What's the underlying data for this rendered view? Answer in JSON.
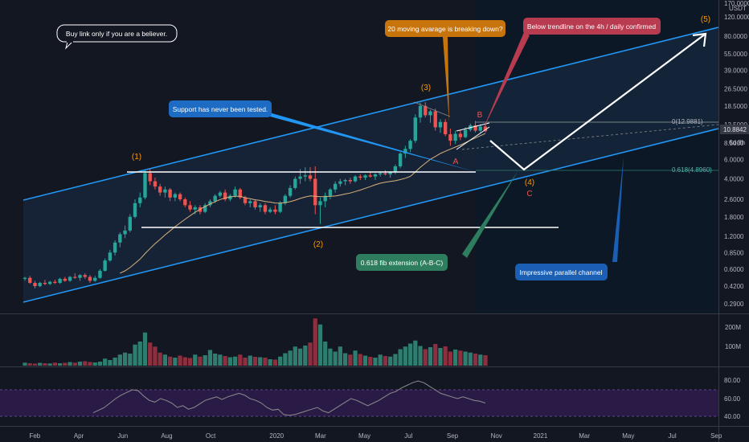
{
  "chart_data": {
    "type": "candlestick",
    "price_scale": "log",
    "currency": "USDT",
    "y_ticks": [
      "170.0000",
      "120.0000",
      "80.0000",
      "55.0000",
      "39.0000",
      "26.5000",
      "18.5000",
      "12.5000",
      "8.5000",
      "6.0000",
      "4.0000",
      "2.6000",
      "1.8000",
      "1.2000",
      "0.8500",
      "0.6000",
      "0.4200",
      "0.2900"
    ],
    "current_price": "10.8842",
    "countdown": "6d 8h",
    "x_ticks": [
      "Feb",
      "Apr",
      "Jun",
      "Aug",
      "Oct",
      "2020",
      "Mar",
      "May",
      "Jul",
      "Sep",
      "Nov",
      "2021",
      "Mar",
      "May",
      "Jul",
      "Sep"
    ],
    "volume_ticks": [
      "200M",
      "100M"
    ],
    "rsi_ticks": [
      "80.00",
      "60.00",
      "40.00"
    ],
    "fib_levels": [
      {
        "label": "0(12.9881)",
        "value": 12.9881
      },
      {
        "label": "0.618(4.8960)",
        "value": 4.896
      }
    ],
    "wave_labels": [
      "(1)",
      "(2)",
      "(3)",
      "(4)",
      "(5)"
    ],
    "abc_labels": [
      "A",
      "B",
      "C"
    ],
    "weekly_candles": [
      [
        0.49,
        0.51,
        0.47,
        0.5
      ],
      [
        0.5,
        0.52,
        0.44,
        0.45
      ],
      [
        0.45,
        0.47,
        0.4,
        0.42
      ],
      [
        0.42,
        0.46,
        0.41,
        0.45
      ],
      [
        0.45,
        0.48,
        0.43,
        0.44
      ],
      [
        0.44,
        0.47,
        0.43,
        0.46
      ],
      [
        0.46,
        0.48,
        0.44,
        0.45
      ],
      [
        0.45,
        0.5,
        0.44,
        0.49
      ],
      [
        0.49,
        0.51,
        0.46,
        0.47
      ],
      [
        0.47,
        0.52,
        0.46,
        0.51
      ],
      [
        0.51,
        0.55,
        0.49,
        0.5
      ],
      [
        0.5,
        0.54,
        0.47,
        0.53
      ],
      [
        0.53,
        0.55,
        0.49,
        0.51
      ],
      [
        0.51,
        0.53,
        0.45,
        0.47
      ],
      [
        0.47,
        0.52,
        0.46,
        0.5
      ],
      [
        0.5,
        0.6,
        0.49,
        0.58
      ],
      [
        0.58,
        0.75,
        0.57,
        0.72
      ],
      [
        0.72,
        0.9,
        0.7,
        0.85
      ],
      [
        0.85,
        1.1,
        0.8,
        1.05
      ],
      [
        1.05,
        1.3,
        0.95,
        1.25
      ],
      [
        1.25,
        1.5,
        1.15,
        1.35
      ],
      [
        1.35,
        1.9,
        1.3,
        1.8
      ],
      [
        1.8,
        2.6,
        1.75,
        2.4
      ],
      [
        2.4,
        3.0,
        2.2,
        2.7
      ],
      [
        2.7,
        4.8,
        2.6,
        4.5
      ],
      [
        4.5,
        4.95,
        3.5,
        3.8
      ],
      [
        3.8,
        4.1,
        3.2,
        3.4
      ],
      [
        3.4,
        3.6,
        2.8,
        3.0
      ],
      [
        3.0,
        3.4,
        2.7,
        3.2
      ],
      [
        3.2,
        3.3,
        2.5,
        2.7
      ],
      [
        2.7,
        3.0,
        2.5,
        2.9
      ],
      [
        2.9,
        3.0,
        2.5,
        2.6
      ],
      [
        2.6,
        2.7,
        2.2,
        2.3
      ],
      [
        2.3,
        2.5,
        2.0,
        2.1
      ],
      [
        2.1,
        2.3,
        1.9,
        2.2
      ],
      [
        2.2,
        2.3,
        1.9,
        2.0
      ],
      [
        2.0,
        2.4,
        1.95,
        2.3
      ],
      [
        2.3,
        2.6,
        2.2,
        2.5
      ],
      [
        2.5,
        2.9,
        2.4,
        2.8
      ],
      [
        2.8,
        3.1,
        2.7,
        3.0
      ],
      [
        3.0,
        3.2,
        2.5,
        2.6
      ],
      [
        2.6,
        2.9,
        2.5,
        2.8
      ],
      [
        2.8,
        3.4,
        2.7,
        3.2
      ],
      [
        3.2,
        3.3,
        2.6,
        2.7
      ],
      [
        2.7,
        2.8,
        2.3,
        2.4
      ],
      [
        2.4,
        2.6,
        2.2,
        2.5
      ],
      [
        2.5,
        2.6,
        2.1,
        2.2
      ],
      [
        2.2,
        2.4,
        2.0,
        2.3
      ],
      [
        2.3,
        2.4,
        1.9,
        2.0
      ],
      [
        2.0,
        2.2,
        1.95,
        2.1
      ],
      [
        2.1,
        2.3,
        1.9,
        2.0
      ],
      [
        2.0,
        2.5,
        1.95,
        2.4
      ],
      [
        2.4,
        2.9,
        2.3,
        2.8
      ],
      [
        2.8,
        3.5,
        2.7,
        3.3
      ],
      [
        3.3,
        4.2,
        3.2,
        4.0
      ],
      [
        4.0,
        4.9,
        3.6,
        4.2
      ],
      [
        4.2,
        5.1,
        3.8,
        4.3
      ],
      [
        4.3,
        5.1,
        3.8,
        4.0
      ],
      [
        4.0,
        5.2,
        1.9,
        2.3
      ],
      [
        2.3,
        2.7,
        1.55,
        2.5
      ],
      [
        2.5,
        3.0,
        2.2,
        2.8
      ],
      [
        2.8,
        3.3,
        2.6,
        3.2
      ],
      [
        3.2,
        3.8,
        3.0,
        3.6
      ],
      [
        3.6,
        4.0,
        3.4,
        3.8
      ],
      [
        3.8,
        4.0,
        3.5,
        3.9
      ],
      [
        3.9,
        4.1,
        3.6,
        3.8
      ],
      [
        3.8,
        4.3,
        3.7,
        4.2
      ],
      [
        4.2,
        4.4,
        3.9,
        4.1
      ],
      [
        4.1,
        4.4,
        3.9,
        4.3
      ],
      [
        4.3,
        4.6,
        4.1,
        4.2
      ],
      [
        4.2,
        4.5,
        3.9,
        4.4
      ],
      [
        4.4,
        4.7,
        4.2,
        4.5
      ],
      [
        4.5,
        4.8,
        4.3,
        4.4
      ],
      [
        4.4,
        4.7,
        4.1,
        4.6
      ],
      [
        4.6,
        5.4,
        4.4,
        5.2
      ],
      [
        5.2,
        7.0,
        5.0,
        6.8
      ],
      [
        6.8,
        8.0,
        6.2,
        7.5
      ],
      [
        7.5,
        9.2,
        7.0,
        8.9
      ],
      [
        8.9,
        15.5,
        8.5,
        14.5
      ],
      [
        14.5,
        19.8,
        13.0,
        18.5
      ],
      [
        18.5,
        20.0,
        14.5,
        15.2
      ],
      [
        15.2,
        17.0,
        13.0,
        16.5
      ],
      [
        16.5,
        17.5,
        11.0,
        11.8
      ],
      [
        11.8,
        14.0,
        10.5,
        13.2
      ],
      [
        13.2,
        14.0,
        9.8,
        10.2
      ],
      [
        10.2,
        11.5,
        8.0,
        8.9
      ],
      [
        8.9,
        11.0,
        8.3,
        10.3
      ],
      [
        10.3,
        11.2,
        9.0,
        9.6
      ],
      [
        9.6,
        11.8,
        9.4,
        11.2
      ],
      [
        11.2,
        12.8,
        10.8,
        12.3
      ],
      [
        12.3,
        13.5,
        10.6,
        11.0
      ],
      [
        11.0,
        12.6,
        10.5,
        12.0
      ],
      [
        12.0,
        12.8,
        10.6,
        10.88
      ]
    ],
    "weekly_volume_millions": [
      15,
      12,
      10,
      14,
      12,
      11,
      15,
      12,
      14,
      18,
      15,
      20,
      22,
      18,
      16,
      20,
      35,
      28,
      40,
      55,
      65,
      60,
      105,
      120,
      165,
      115,
      95,
      65,
      55,
      45,
      40,
      50,
      42,
      38,
      55,
      45,
      52,
      78,
      60,
      55,
      48,
      42,
      45,
      55,
      40,
      50,
      44,
      42,
      40,
      32,
      30,
      45,
      62,
      75,
      95,
      85,
      100,
      115,
      235,
      205,
      120,
      85,
      70,
      95,
      62,
      55,
      75,
      58,
      50,
      44,
      40,
      55,
      48,
      45,
      58,
      82,
      95,
      110,
      125,
      98,
      82,
      92,
      108,
      88,
      96,
      70,
      80,
      75,
      70,
      65,
      60,
      55,
      52
    ],
    "rsi": [
      44,
      47,
      50,
      55,
      60,
      64,
      67,
      70,
      69,
      63,
      58,
      56,
      60,
      58,
      55,
      50,
      52,
      48,
      50,
      54,
      58,
      60,
      62,
      59,
      62,
      64,
      66,
      64,
      60,
      58,
      55,
      50,
      47,
      48,
      42,
      41,
      42,
      44,
      46,
      48,
      50,
      46,
      44,
      48,
      52,
      56,
      60,
      58,
      55,
      52,
      55,
      58,
      62,
      66,
      68,
      72,
      75,
      78,
      80,
      78,
      74,
      70,
      66,
      64,
      62,
      60,
      62,
      60,
      58,
      57,
      55
    ]
  },
  "annotations": {
    "buy_link_note": "Buy link only if you are a believer.",
    "support_note": "Support has never been tested.",
    "moving_average_note": "20 moving avarage is breaking down?",
    "trendline_note": "Below trendline on the 4h / daily confirmed",
    "fib_extension_note": "0.618 fib extension (A-B-C)",
    "channel_note": "Impressive parallel channel"
  },
  "colors": {
    "background": "#131722",
    "channel_blue": "#2196f3",
    "bull": "#26a69a",
    "bear": "#ef5350",
    "vol_bull": "#2e7d6e",
    "vol_bear": "#8e2f3f",
    "wave_orange": "#ff9800",
    "abc_red": "#ef5350",
    "rsi_line": "#8c8c8c",
    "rsi_band": "#2a1b46",
    "bubble_dark": "#131722",
    "bubble_blue": "#1e6bc4",
    "bubble_orange": "#c8740c",
    "bubble_red": "#b83b4f",
    "bubble_green": "#2e7d5e",
    "bubble_blue2": "#1a5fb4"
  }
}
